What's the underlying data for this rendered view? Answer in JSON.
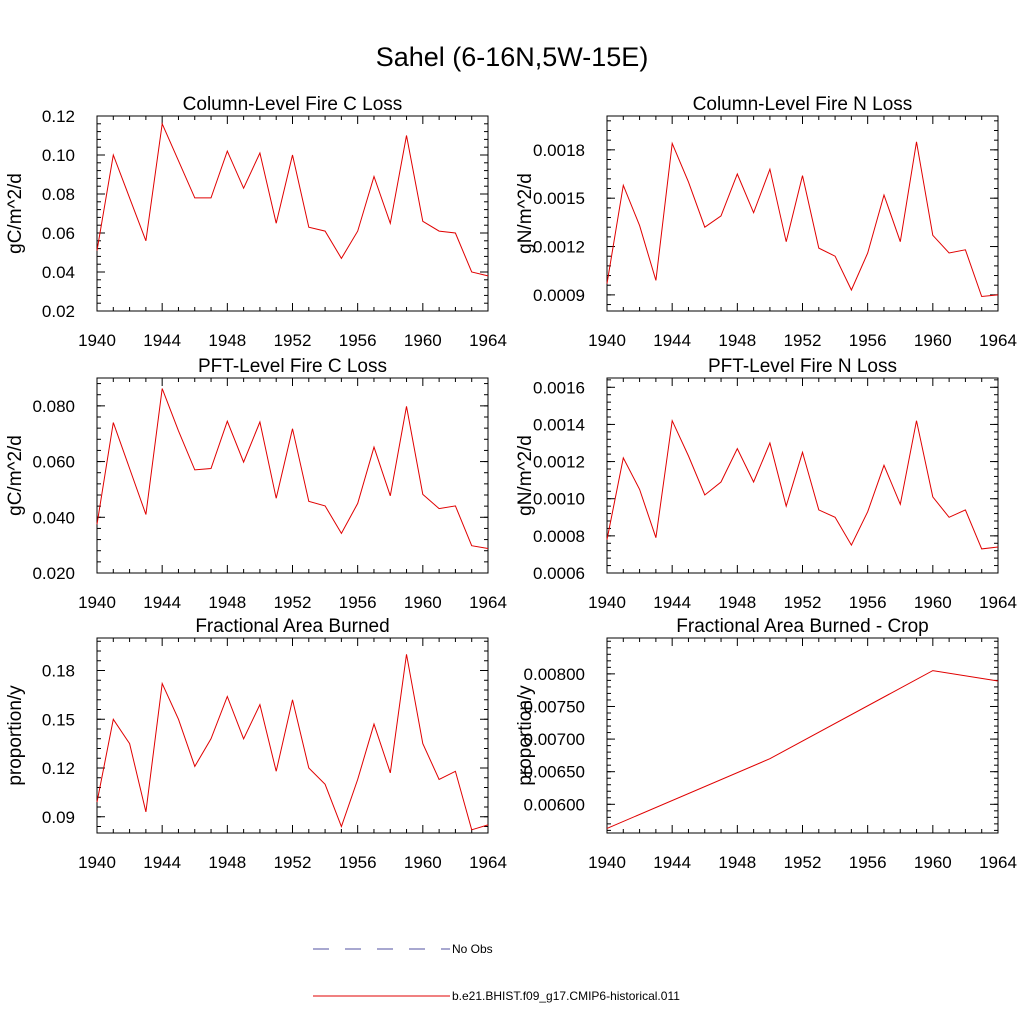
{
  "figure": {
    "title": "Sahel (6-16N,5W-15E)"
  },
  "chart_data": [
    {
      "type": "line",
      "title": "Column-Level Fire C Loss",
      "ylabel": "gC/m^2/d",
      "xlabel": "",
      "xlim": [
        1940,
        1964
      ],
      "xticks": [
        "1940",
        "1944",
        "1948",
        "1952",
        "1956",
        "1960",
        "1964"
      ],
      "ylim": [
        0.02,
        0.12
      ],
      "yticks": [
        "0.02",
        "0.04",
        "0.06",
        "0.08",
        "0.10",
        "0.12"
      ],
      "series": [
        {
          "x": [
            1940,
            1941,
            1942,
            1943,
            1944,
            1945,
            1946,
            1947,
            1948,
            1949,
            1950,
            1951,
            1952,
            1953,
            1954,
            1955,
            1956,
            1957,
            1958,
            1959,
            1960,
            1961,
            1962,
            1963,
            1964
          ],
          "values": [
            0.051,
            0.1,
            0.078,
            0.056,
            0.116,
            0.097,
            0.078,
            0.078,
            0.102,
            0.083,
            0.101,
            0.065,
            0.1,
            0.063,
            0.061,
            0.047,
            0.061,
            0.089,
            0.065,
            0.11,
            0.066,
            0.061,
            0.06,
            0.04,
            0.038
          ]
        }
      ]
    },
    {
      "type": "line",
      "title": "Column-Level Fire N Loss",
      "ylabel": "gN/m^2/d",
      "xlabel": "",
      "xlim": [
        1940,
        1964
      ],
      "xticks": [
        "1940",
        "1944",
        "1948",
        "1952",
        "1956",
        "1960",
        "1964"
      ],
      "ylim": [
        0.0008,
        0.00201
      ],
      "yticks": [
        "0.0009",
        "0.0012",
        "0.0015",
        "0.0018"
      ],
      "yticks_values": [
        0.0009,
        0.0012,
        0.0015,
        0.0018
      ],
      "series": [
        {
          "x": [
            1940,
            1941,
            1942,
            1943,
            1944,
            1945,
            1946,
            1947,
            1948,
            1949,
            1950,
            1951,
            1952,
            1953,
            1954,
            1955,
            1956,
            1957,
            1958,
            1959,
            1960,
            1961,
            1962,
            1963,
            1964
          ],
          "values": [
            0.00097,
            0.00158,
            0.00133,
            0.00099,
            0.00184,
            0.0016,
            0.00132,
            0.00139,
            0.00165,
            0.00141,
            0.00168,
            0.00123,
            0.00164,
            0.00119,
            0.00114,
            0.00093,
            0.00116,
            0.00152,
            0.00123,
            0.00185,
            0.00127,
            0.00116,
            0.00118,
            0.00089,
            0.0009
          ]
        }
      ]
    },
    {
      "type": "line",
      "title": "PFT-Level Fire C Loss",
      "ylabel": "gC/m^2/d",
      "xlabel": "",
      "xlim": [
        1940,
        1964
      ],
      "xticks": [
        "1940",
        "1944",
        "1948",
        "1952",
        "1956",
        "1960",
        "1964"
      ],
      "ylim": [
        0.02,
        0.09
      ],
      "yticks": [
        "0.020",
        "0.040",
        "0.060",
        "0.080"
      ],
      "yticks_values": [
        0.02,
        0.04,
        0.06,
        0.08
      ],
      "series": [
        {
          "x": [
            1940,
            1941,
            1942,
            1943,
            1944,
            1945,
            1946,
            1947,
            1948,
            1949,
            1950,
            1951,
            1952,
            1953,
            1954,
            1955,
            1956,
            1957,
            1958,
            1959,
            1960,
            1961,
            1962,
            1963,
            1964
          ],
          "values": [
            0.0375,
            0.074,
            0.0575,
            0.041,
            0.0862,
            0.071,
            0.057,
            0.0575,
            0.0745,
            0.0598,
            0.0742,
            0.0468,
            0.0718,
            0.0457,
            0.0441,
            0.0342,
            0.045,
            0.0652,
            0.0477,
            0.0798,
            0.0482,
            0.0431,
            0.0441,
            0.0298,
            0.0288
          ]
        }
      ]
    },
    {
      "type": "line",
      "title": "PFT-Level Fire N Loss",
      "ylabel": "gN/m^2/d",
      "xlabel": "",
      "xlim": [
        1940,
        1964
      ],
      "xticks": [
        "1940",
        "1944",
        "1948",
        "1952",
        "1956",
        "1960",
        "1964"
      ],
      "ylim": [
        0.0006,
        0.00165
      ],
      "yticks": [
        "0.0006",
        "0.0008",
        "0.0010",
        "0.0012",
        "0.0014",
        "0.0016"
      ],
      "yticks_values": [
        0.0006,
        0.0008,
        0.001,
        0.0012,
        0.0014,
        0.0016
      ],
      "series": [
        {
          "x": [
            1940,
            1941,
            1942,
            1943,
            1944,
            1945,
            1946,
            1947,
            1948,
            1949,
            1950,
            1951,
            1952,
            1953,
            1954,
            1955,
            1956,
            1957,
            1958,
            1959,
            1960,
            1961,
            1962,
            1963,
            1964
          ],
          "values": [
            0.00078,
            0.00122,
            0.00105,
            0.00079,
            0.00142,
            0.00123,
            0.00102,
            0.00109,
            0.00127,
            0.00109,
            0.0013,
            0.00096,
            0.00125,
            0.00094,
            0.0009,
            0.00075,
            0.00093,
            0.00118,
            0.00097,
            0.00142,
            0.00101,
            0.0009,
            0.00094,
            0.00073,
            0.00074
          ]
        }
      ]
    },
    {
      "type": "line",
      "title": "Fractional Area Burned",
      "ylabel": "proportion/y",
      "xlabel": "",
      "xlim": [
        1940,
        1964
      ],
      "xticks": [
        "1940",
        "1944",
        "1948",
        "1952",
        "1956",
        "1960",
        "1964"
      ],
      "ylim": [
        0.08,
        0.2
      ],
      "yticks": [
        "0.09",
        "0.12",
        "0.15",
        "0.18"
      ],
      "yticks_values": [
        0.09,
        0.12,
        0.15,
        0.18
      ],
      "series": [
        {
          "x": [
            1940,
            1941,
            1942,
            1943,
            1944,
            1945,
            1946,
            1947,
            1948,
            1949,
            1950,
            1951,
            1952,
            1953,
            1954,
            1955,
            1956,
            1957,
            1958,
            1959,
            1960,
            1961,
            1962,
            1963,
            1964
          ],
          "values": [
            0.099,
            0.15,
            0.135,
            0.093,
            0.172,
            0.15,
            0.121,
            0.138,
            0.164,
            0.138,
            0.159,
            0.118,
            0.162,
            0.12,
            0.11,
            0.084,
            0.113,
            0.147,
            0.117,
            0.19,
            0.135,
            0.113,
            0.118,
            0.082,
            0.085
          ]
        }
      ]
    },
    {
      "type": "line",
      "title": "Fractional Area Burned - Crop",
      "ylabel": "proportion/y",
      "xlabel": "",
      "xlim": [
        1940,
        1964
      ],
      "xticks": [
        "1940",
        "1944",
        "1948",
        "1952",
        "1956",
        "1960",
        "1964"
      ],
      "ylim": [
        0.00556,
        0.00855
      ],
      "yticks": [
        "0.00600",
        "0.00650",
        "0.00700",
        "0.00750",
        "0.00800"
      ],
      "yticks_values": [
        0.006,
        0.0065,
        0.007,
        0.0075,
        0.008
      ],
      "series": [
        {
          "x": [
            1940,
            1950,
            1960,
            1964
          ],
          "values": [
            0.00563,
            0.0067,
            0.00805,
            0.00789
          ]
        }
      ]
    }
  ],
  "legend": {
    "items": [
      {
        "label": "No Obs",
        "color": "#5050a0",
        "style": "dashed"
      },
      {
        "label": "b.e21.BHIST.f09_g17.CMIP6-historical.011",
        "color": "#e00000",
        "style": "solid"
      }
    ]
  },
  "colors": {
    "series": "#e00000",
    "obs": "#5050a0",
    "axis": "#000000"
  }
}
